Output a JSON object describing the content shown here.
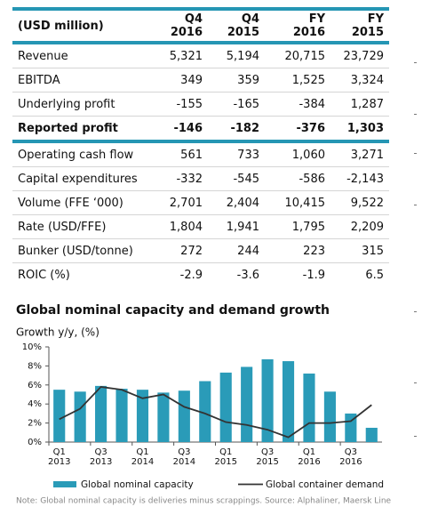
{
  "table": {
    "header": [
      "(USD million)",
      "Q4 2016",
      "Q4 2015",
      "FY 2016",
      "FY 2015"
    ],
    "rows": [
      [
        "Revenue",
        "5,321",
        "5,194",
        "20,715",
        "23,729"
      ],
      [
        "EBITDA",
        "349",
        "359",
        "1,525",
        "3,324"
      ],
      [
        "Underlying profit",
        "-155",
        "-165",
        "-384",
        "1,287"
      ],
      [
        "Reported profit",
        "-146",
        "-182",
        "-376",
        "1,303"
      ],
      [
        "Operating cash flow",
        "561",
        "733",
        "1,060",
        "3,271"
      ],
      [
        "Capital expenditures",
        "-332",
        "-545",
        "-586",
        "-2,143"
      ],
      [
        "Volume (FFE ‘000)",
        "2,701",
        "2,404",
        "10,415",
        "9,522"
      ],
      [
        "Rate (USD/FFE)",
        "1,804",
        "1,941",
        "1,795",
        "2,209"
      ],
      [
        "Bunker (USD/tonne)",
        "272",
        "244",
        "223",
        "315"
      ],
      [
        "ROIC (%)",
        "-2.9",
        "-3.6",
        "-1.9",
        "6.5"
      ]
    ]
  },
  "chart_data": {
    "type": "bar",
    "title": "Global nominal capacity and demand growth",
    "y_label": "Growth y/y, (%)",
    "note": "Note: Global nominal capacity is deliveries minus scrappings. Source: Alphaliner, Maersk Line",
    "categories": [
      "Q1 2013",
      null,
      "Q3 2013",
      null,
      "Q1 2014",
      null,
      "Q3 2014",
      null,
      "Q1 2015",
      null,
      "Q3 2015",
      null,
      "Q1 2016",
      null,
      "Q3 2016",
      null
    ],
    "series": [
      {
        "name": "Global nominal capacity",
        "type": "bar",
        "color": "#2a9bb8",
        "values": [
          5.5,
          5.3,
          5.9,
          5.6,
          5.5,
          5.2,
          5.4,
          6.4,
          7.3,
          7.9,
          8.7,
          8.5,
          7.2,
          5.3,
          3.0,
          1.5
        ]
      },
      {
        "name": "Global container demand",
        "type": "line",
        "color": "#333333",
        "values": [
          2.4,
          3.5,
          5.8,
          5.5,
          4.6,
          5.0,
          3.7,
          3.0,
          2.1,
          1.8,
          1.3,
          0.5,
          2.0,
          2.0,
          2.2,
          3.9
        ]
      }
    ],
    "ylim": [
      0,
      10
    ],
    "yticks": [
      {
        "value": 0,
        "label": "0%"
      },
      {
        "value": 2,
        "label": "2%"
      },
      {
        "value": 4,
        "label": "4%"
      },
      {
        "value": 6,
        "label": "6%"
      },
      {
        "value": 8,
        "label": "8%"
      },
      {
        "value": 10,
        "label": "10%"
      }
    ],
    "grid": false
  }
}
